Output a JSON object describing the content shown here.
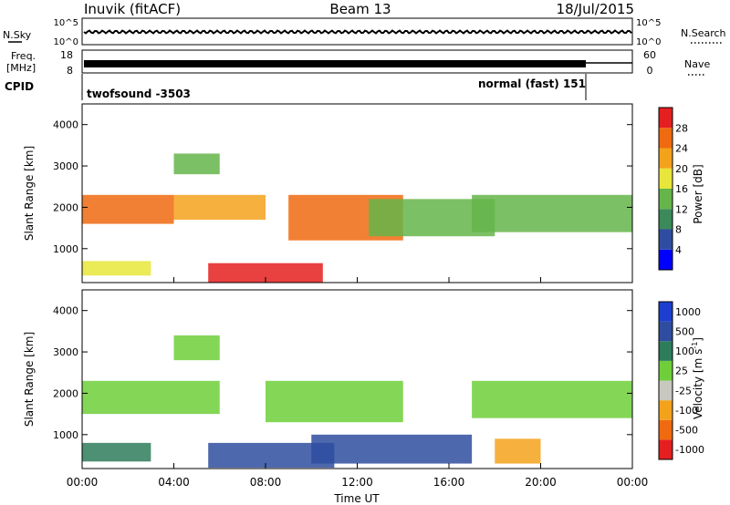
{
  "header": {
    "station": "Inuvik (fitACF)",
    "beam": "Beam 13",
    "date": "18/Jul/2015"
  },
  "left_labels": {
    "nsky": "N.Sky",
    "freq_line1": "Freq.",
    "freq_line2": "[MHz]",
    "cpid": "CPID"
  },
  "right_labels": {
    "nsearch": "N.Search",
    "nave": "Nave"
  },
  "noise_panel": {
    "left_ticks": [
      "10^5",
      "10^0"
    ],
    "right_ticks": [
      "10^5",
      "10^0"
    ]
  },
  "freq_panel": {
    "left_ticks": [
      "18",
      "8"
    ],
    "right_ticks": [
      "60",
      "0"
    ]
  },
  "cpid_panel": {
    "mode1": "twofsound -3503",
    "mode2": "normal (fast) 151"
  },
  "colors": {
    "power": [
      "#0000ff",
      "#2f4da0",
      "#3c8a5a",
      "#65b54a",
      "#e8e63a",
      "#f4a21c",
      "#f06a10",
      "#e51f1f"
    ],
    "velocity": [
      "#e51f1f",
      "#f06a10",
      "#f4a21c",
      "#c8c8c0",
      "#6fcf3a",
      "#2e7d5a",
      "#2f4da0",
      "#1c3fd0"
    ],
    "ground_scatter": "#c8c8c0"
  },
  "chart_data": [
    {
      "type": "heatmap",
      "title": "",
      "xlabel": "",
      "ylabel": "Slant Range [km]",
      "xlim": [
        "00:00",
        "00:00"
      ],
      "ylim": [
        180,
        4500
      ],
      "y_ticks": [
        1000,
        2000,
        3000,
        4000
      ],
      "colorbar": {
        "label": "Power [dB]",
        "ticks": [
          4,
          8,
          12,
          16,
          20,
          24,
          28
        ],
        "range": [
          0,
          32
        ]
      },
      "echo_regions": [
        {
          "t_start": 0.0,
          "t_end": 4.0,
          "range_start": 1600,
          "range_end": 2300,
          "power": 25
        },
        {
          "t_start": 0.0,
          "t_end": 3.0,
          "range_start": 350,
          "range_end": 700,
          "power": 18
        },
        {
          "t_start": 5.5,
          "t_end": 10.5,
          "range_start": 180,
          "range_end": 650,
          "power": 30
        },
        {
          "t_start": 4.0,
          "t_end": 8.0,
          "range_start": 1700,
          "range_end": 2300,
          "power": 22
        },
        {
          "t_start": 9.0,
          "t_end": 14.0,
          "range_start": 1200,
          "range_end": 2300,
          "power": 24
        },
        {
          "t_start": 12.5,
          "t_end": 18.0,
          "range_start": 1300,
          "range_end": 2200,
          "power": 14
        },
        {
          "t_start": 17.0,
          "t_end": 24.0,
          "range_start": 1400,
          "range_end": 2300,
          "power": 12
        },
        {
          "t_start": 4.0,
          "t_end": 6.0,
          "range_start": 2800,
          "range_end": 3300,
          "power": 14
        }
      ]
    },
    {
      "type": "heatmap",
      "title": "",
      "xlabel": "Time UT",
      "ylabel": "Slant Range [km]",
      "xlim": [
        "00:00",
        "00:00"
      ],
      "ylim": [
        180,
        4500
      ],
      "x_ticks": [
        "00:00",
        "04:00",
        "08:00",
        "12:00",
        "16:00",
        "20:00",
        "00:00"
      ],
      "y_ticks": [
        1000,
        2000,
        3000,
        4000
      ],
      "colorbar": {
        "label": "Velocity [m s-1]",
        "label_main": "Velocity",
        "label_unit": "[m s",
        "label_exp": "-1",
        "label_close": "]",
        "ticks": [
          1000,
          500,
          100,
          25,
          -25,
          -100,
          -500,
          -1000
        ]
      },
      "echo_regions": [
        {
          "t_start": 0.0,
          "t_end": 6.0,
          "range_start": 1500,
          "range_end": 2300,
          "velocity": 0
        },
        {
          "t_start": 0.0,
          "t_end": 3.0,
          "range_start": 350,
          "range_end": 800,
          "velocity": 80
        },
        {
          "t_start": 5.5,
          "t_end": 11.0,
          "range_start": 200,
          "range_end": 800,
          "velocity": 150
        },
        {
          "t_start": 8.0,
          "t_end": 14.0,
          "range_start": 1300,
          "range_end": 2300,
          "velocity": 0
        },
        {
          "t_start": 10.0,
          "t_end": 17.0,
          "range_start": 300,
          "range_end": 1000,
          "velocity": 200
        },
        {
          "t_start": 17.0,
          "t_end": 24.0,
          "range_start": 1400,
          "range_end": 2300,
          "velocity": 0
        },
        {
          "t_start": 18.0,
          "t_end": 20.0,
          "range_start": 300,
          "range_end": 900,
          "velocity": -300
        },
        {
          "t_start": 4.0,
          "t_end": 6.0,
          "range_start": 2800,
          "range_end": 3400,
          "velocity": 0
        }
      ]
    }
  ]
}
